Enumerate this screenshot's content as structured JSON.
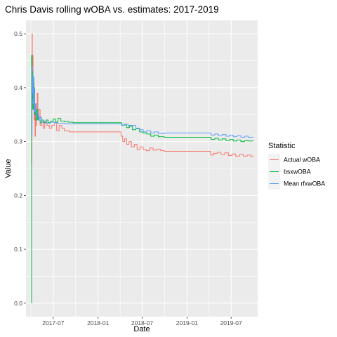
{
  "chart_data": {
    "type": "line",
    "title": "Chris Davis rolling wOBA vs. estimates: 2017-2019",
    "xlabel": "Date",
    "ylabel": "Value",
    "x_axis_type": "date",
    "xlim": [
      "2017-03-11",
      "2019-10-18"
    ],
    "ylim": [
      -0.025,
      0.525
    ],
    "x_ticks": [
      {
        "date": "2017-07-01",
        "label": "2017-07"
      },
      {
        "date": "2018-01-01",
        "label": "2018-01"
      },
      {
        "date": "2018-07-01",
        "label": "2018-07"
      },
      {
        "date": "2019-01-01",
        "label": "2019-01"
      },
      {
        "date": "2019-07-01",
        "label": "2019-07"
      }
    ],
    "y_ticks": [
      0.0,
      0.1,
      0.2,
      0.3,
      0.4,
      0.5
    ],
    "y_tick_labels": [
      "0.0",
      "0.1",
      "0.2",
      "0.3",
      "0.4",
      "0.5"
    ],
    "grid": true,
    "panel_background": "#ebebeb",
    "legend": {
      "title": "Statistic",
      "position": "right"
    },
    "series": [
      {
        "name": "Actual wOBA",
        "color": "#F8766D",
        "points": [
          [
            "2017-04-03",
            0.26
          ],
          [
            "2017-04-04",
            0.42
          ],
          [
            "2017-04-05",
            0.5
          ],
          [
            "2017-04-06",
            0.38
          ],
          [
            "2017-04-07",
            0.46
          ],
          [
            "2017-04-09",
            0.36
          ],
          [
            "2017-04-11",
            0.41
          ],
          [
            "2017-04-13",
            0.34
          ],
          [
            "2017-04-15",
            0.37
          ],
          [
            "2017-04-17",
            0.31
          ],
          [
            "2017-04-19",
            0.35
          ],
          [
            "2017-04-21",
            0.33
          ],
          [
            "2017-04-23",
            0.36
          ],
          [
            "2017-04-26",
            0.39
          ],
          [
            "2017-04-29",
            0.34
          ],
          [
            "2017-05-03",
            0.36
          ],
          [
            "2017-05-08",
            0.33
          ],
          [
            "2017-05-14",
            0.34
          ],
          [
            "2017-05-20",
            0.325
          ],
          [
            "2017-05-27",
            0.335
          ],
          [
            "2017-06-05",
            0.33
          ],
          [
            "2017-06-15",
            0.325
          ],
          [
            "2017-06-25",
            0.33
          ],
          [
            "2017-07-05",
            0.335
          ],
          [
            "2017-07-15",
            0.32
          ],
          [
            "2017-07-25",
            0.33
          ],
          [
            "2017-08-05",
            0.325
          ],
          [
            "2017-08-15",
            0.32
          ],
          [
            "2017-08-25",
            0.32
          ],
          [
            "2017-09-05",
            0.318
          ],
          [
            "2017-09-20",
            0.318
          ],
          [
            "2017-10-01",
            0.318
          ],
          [
            "2018-03-29",
            0.318
          ],
          [
            "2018-04-05",
            0.31
          ],
          [
            "2018-04-12",
            0.3
          ],
          [
            "2018-04-20",
            0.305
          ],
          [
            "2018-04-28",
            0.295
          ],
          [
            "2018-05-08",
            0.3
          ],
          [
            "2018-05-18",
            0.29
          ],
          [
            "2018-05-30",
            0.295
          ],
          [
            "2018-06-10",
            0.285
          ],
          [
            "2018-06-22",
            0.29
          ],
          [
            "2018-07-05",
            0.285
          ],
          [
            "2018-07-18",
            0.283
          ],
          [
            "2018-08-01",
            0.288
          ],
          [
            "2018-08-15",
            0.284
          ],
          [
            "2018-08-30",
            0.286
          ],
          [
            "2018-09-15",
            0.283
          ],
          [
            "2018-09-30",
            0.282
          ],
          [
            "2019-03-28",
            0.282
          ],
          [
            "2019-04-08",
            0.275
          ],
          [
            "2019-04-20",
            0.278
          ],
          [
            "2019-05-05",
            0.28
          ],
          [
            "2019-05-20",
            0.276
          ],
          [
            "2019-06-05",
            0.279
          ],
          [
            "2019-06-20",
            0.274
          ],
          [
            "2019-07-05",
            0.277
          ],
          [
            "2019-07-20",
            0.273
          ],
          [
            "2019-08-05",
            0.276
          ],
          [
            "2019-08-20",
            0.273
          ],
          [
            "2019-09-05",
            0.275
          ],
          [
            "2019-09-20",
            0.272
          ],
          [
            "2019-09-29",
            0.274
          ]
        ]
      },
      {
        "name": "bsxwOBA",
        "color": "#00BA38",
        "points": [
          [
            "2017-04-03",
            0.0
          ],
          [
            "2017-04-03",
            0.46
          ],
          [
            "2017-04-05",
            0.38
          ],
          [
            "2017-04-06",
            0.43
          ],
          [
            "2017-04-08",
            0.36
          ],
          [
            "2017-04-10",
            0.42
          ],
          [
            "2017-04-12",
            0.37
          ],
          [
            "2017-04-14",
            0.4
          ],
          [
            "2017-04-16",
            0.35
          ],
          [
            "2017-04-18",
            0.37
          ],
          [
            "2017-04-21",
            0.34
          ],
          [
            "2017-04-24",
            0.36
          ],
          [
            "2017-04-28",
            0.34
          ],
          [
            "2017-05-03",
            0.345
          ],
          [
            "2017-05-08",
            0.335
          ],
          [
            "2017-05-14",
            0.34
          ],
          [
            "2017-05-22",
            0.335
          ],
          [
            "2017-06-01",
            0.34
          ],
          [
            "2017-06-10",
            0.335
          ],
          [
            "2017-06-20",
            0.338
          ],
          [
            "2017-07-01",
            0.342
          ],
          [
            "2017-07-10",
            0.336
          ],
          [
            "2017-07-20",
            0.343
          ],
          [
            "2017-08-01",
            0.338
          ],
          [
            "2017-08-15",
            0.337
          ],
          [
            "2017-09-01",
            0.336
          ],
          [
            "2017-09-20",
            0.335
          ],
          [
            "2017-10-01",
            0.335
          ],
          [
            "2018-03-29",
            0.335
          ],
          [
            "2018-04-08",
            0.33
          ],
          [
            "2018-04-18",
            0.332
          ],
          [
            "2018-04-28",
            0.326
          ],
          [
            "2018-05-10",
            0.33
          ],
          [
            "2018-05-22",
            0.322
          ],
          [
            "2018-06-05",
            0.325
          ],
          [
            "2018-06-20",
            0.318
          ],
          [
            "2018-07-05",
            0.316
          ],
          [
            "2018-07-20",
            0.314
          ],
          [
            "2018-08-05",
            0.31
          ],
          [
            "2018-08-20",
            0.312
          ],
          [
            "2018-09-05",
            0.309
          ],
          [
            "2018-09-30",
            0.308
          ],
          [
            "2019-03-28",
            0.308
          ],
          [
            "2019-04-10",
            0.304
          ],
          [
            "2019-04-25",
            0.306
          ],
          [
            "2019-05-10",
            0.303
          ],
          [
            "2019-05-25",
            0.305
          ],
          [
            "2019-06-10",
            0.302
          ],
          [
            "2019-06-25",
            0.304
          ],
          [
            "2019-07-10",
            0.301
          ],
          [
            "2019-07-25",
            0.303
          ],
          [
            "2019-08-10",
            0.3
          ],
          [
            "2019-08-25",
            0.302
          ],
          [
            "2019-09-10",
            0.301
          ],
          [
            "2019-09-29",
            0.302
          ]
        ]
      },
      {
        "name": "Mean rfxwOBA",
        "color": "#619CFF",
        "points": [
          [
            "2017-04-04",
            0.31
          ],
          [
            "2017-04-05",
            0.44
          ],
          [
            "2017-04-06",
            0.39
          ],
          [
            "2017-04-08",
            0.42
          ],
          [
            "2017-04-10",
            0.37
          ],
          [
            "2017-04-12",
            0.4
          ],
          [
            "2017-04-15",
            0.355
          ],
          [
            "2017-04-18",
            0.37
          ],
          [
            "2017-04-21",
            0.345
          ],
          [
            "2017-04-25",
            0.352
          ],
          [
            "2017-05-01",
            0.34
          ],
          [
            "2017-05-08",
            0.345
          ],
          [
            "2017-05-15",
            0.336
          ],
          [
            "2017-05-25",
            0.338
          ],
          [
            "2017-06-05",
            0.334
          ],
          [
            "2017-06-20",
            0.336
          ],
          [
            "2017-07-05",
            0.335
          ],
          [
            "2017-07-20",
            0.334
          ],
          [
            "2017-08-05",
            0.334
          ],
          [
            "2017-08-20",
            0.333
          ],
          [
            "2017-09-10",
            0.333
          ],
          [
            "2017-10-01",
            0.333
          ],
          [
            "2018-03-29",
            0.333
          ],
          [
            "2018-04-10",
            0.33
          ],
          [
            "2018-04-22",
            0.332
          ],
          [
            "2018-05-05",
            0.328
          ],
          [
            "2018-05-20",
            0.33
          ],
          [
            "2018-06-05",
            0.324
          ],
          [
            "2018-06-20",
            0.322
          ],
          [
            "2018-07-05",
            0.318
          ],
          [
            "2018-07-20",
            0.32
          ],
          [
            "2018-08-05",
            0.316
          ],
          [
            "2018-08-20",
            0.318
          ],
          [
            "2018-09-05",
            0.315
          ],
          [
            "2018-09-30",
            0.316
          ],
          [
            "2019-03-28",
            0.316
          ],
          [
            "2019-04-10",
            0.312
          ],
          [
            "2019-04-25",
            0.314
          ],
          [
            "2019-05-10",
            0.311
          ],
          [
            "2019-05-25",
            0.313
          ],
          [
            "2019-06-10",
            0.31
          ],
          [
            "2019-06-25",
            0.312
          ],
          [
            "2019-07-10",
            0.309
          ],
          [
            "2019-07-25",
            0.311
          ],
          [
            "2019-08-10",
            0.308
          ],
          [
            "2019-08-25",
            0.31
          ],
          [
            "2019-09-10",
            0.308
          ],
          [
            "2019-09-29",
            0.309
          ]
        ]
      }
    ]
  }
}
